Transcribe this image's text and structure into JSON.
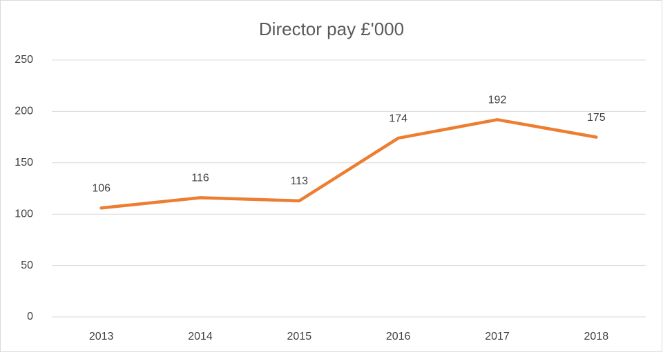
{
  "chart_data": {
    "type": "line",
    "title": "Director pay £'000",
    "categories": [
      "2013",
      "2014",
      "2015",
      "2016",
      "2017",
      "2018"
    ],
    "values": [
      106,
      116,
      113,
      174,
      192,
      175
    ],
    "color": "#ed7d31",
    "ylim": [
      0,
      250
    ],
    "yticks": [
      0,
      50,
      100,
      150,
      200,
      250
    ],
    "grid": true
  }
}
